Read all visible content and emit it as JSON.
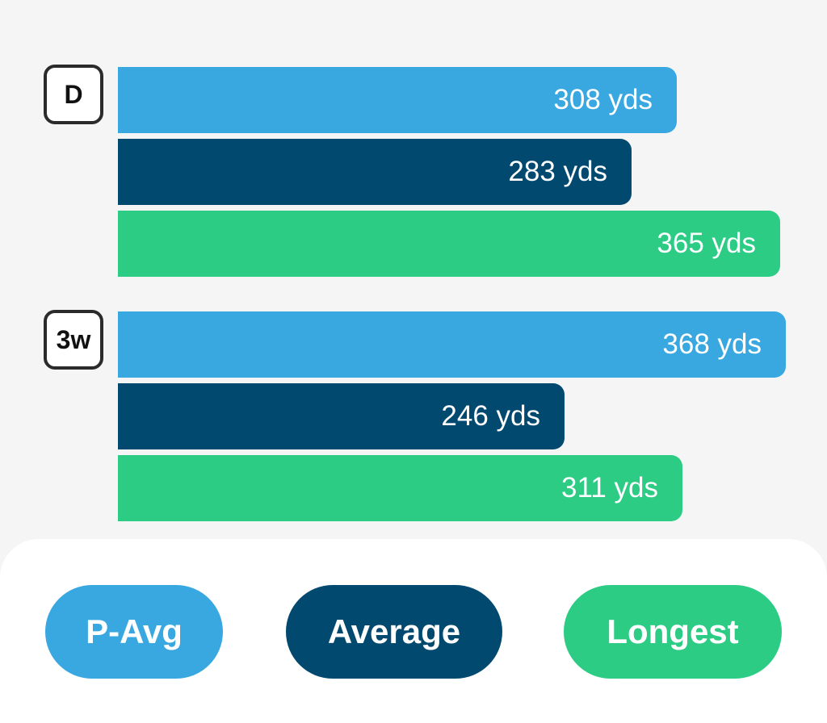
{
  "chart_data": {
    "type": "bar",
    "orientation": "horizontal",
    "unit": "yds",
    "categories": [
      "D",
      "3w"
    ],
    "series": [
      {
        "name": "P-Avg",
        "color": "#3aa8e0",
        "values": [
          308,
          368
        ],
        "labels": [
          "308 yds",
          "368 yds"
        ]
      },
      {
        "name": "Average",
        "color": "#02496f",
        "values": [
          283,
          246
        ],
        "labels": [
          "283 yds",
          "246 yds"
        ]
      },
      {
        "name": "Longest",
        "color": "#2ccc85",
        "values": [
          365,
          311
        ],
        "labels": [
          "365 yds",
          "311 yds"
        ]
      }
    ]
  },
  "legend": {
    "buttons": [
      {
        "label": "P-Avg",
        "color": "#3aa8e0"
      },
      {
        "label": "Average",
        "color": "#02496f"
      },
      {
        "label": "Longest",
        "color": "#2ccc85"
      }
    ]
  }
}
